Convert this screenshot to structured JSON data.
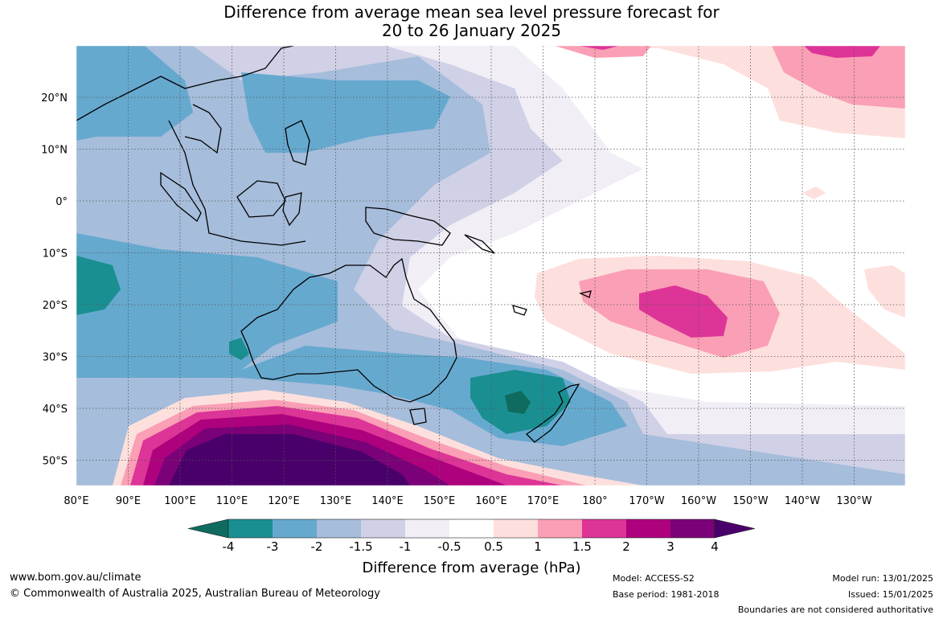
{
  "title_line1": "Difference from average mean sea level pressure forecast for",
  "title_line2": "20 to 26 January 2025",
  "lat_labels": [
    "20°N",
    "10°N",
    "0°",
    "10°S",
    "20°S",
    "30°S",
    "40°S",
    "50°S"
  ],
  "lon_labels": [
    "80°E",
    "90°E",
    "100°E",
    "110°E",
    "120°E",
    "130°E",
    "140°E",
    "150°E",
    "160°E",
    "170°E",
    "180°",
    "170°W",
    "160°W",
    "150°W",
    "140°W",
    "130°W"
  ],
  "colorbar": {
    "ticks": [
      "-4",
      "-3",
      "-2",
      "-1.5",
      "-1",
      "-0.5",
      "0.5",
      "1",
      "1.5",
      "2",
      "3",
      "4"
    ],
    "colors": [
      "#0e6b5e",
      "#1a8f92",
      "#66a9cf",
      "#a6bddb",
      "#d0d1e6",
      "#f1eef6",
      "#ffffff",
      "#fde0dd",
      "#fa9fb5",
      "#dd3497",
      "#ae017e",
      "#7a0177",
      "#49006a"
    ],
    "label": "Difference from average (hPa)"
  },
  "footer": {
    "website": "www.bom.gov.au/climate",
    "copyright": "© Commonwealth of Australia 2025, Australian Bureau of Meteorology",
    "model": "Model: ACCESS-S2",
    "base_period": "Base period: 1981-2018",
    "model_run": "Model run: 13/01/2025",
    "issued": "Issued: 15/01/2025",
    "disclaimer": "Boundaries are not considered authoritative"
  }
}
